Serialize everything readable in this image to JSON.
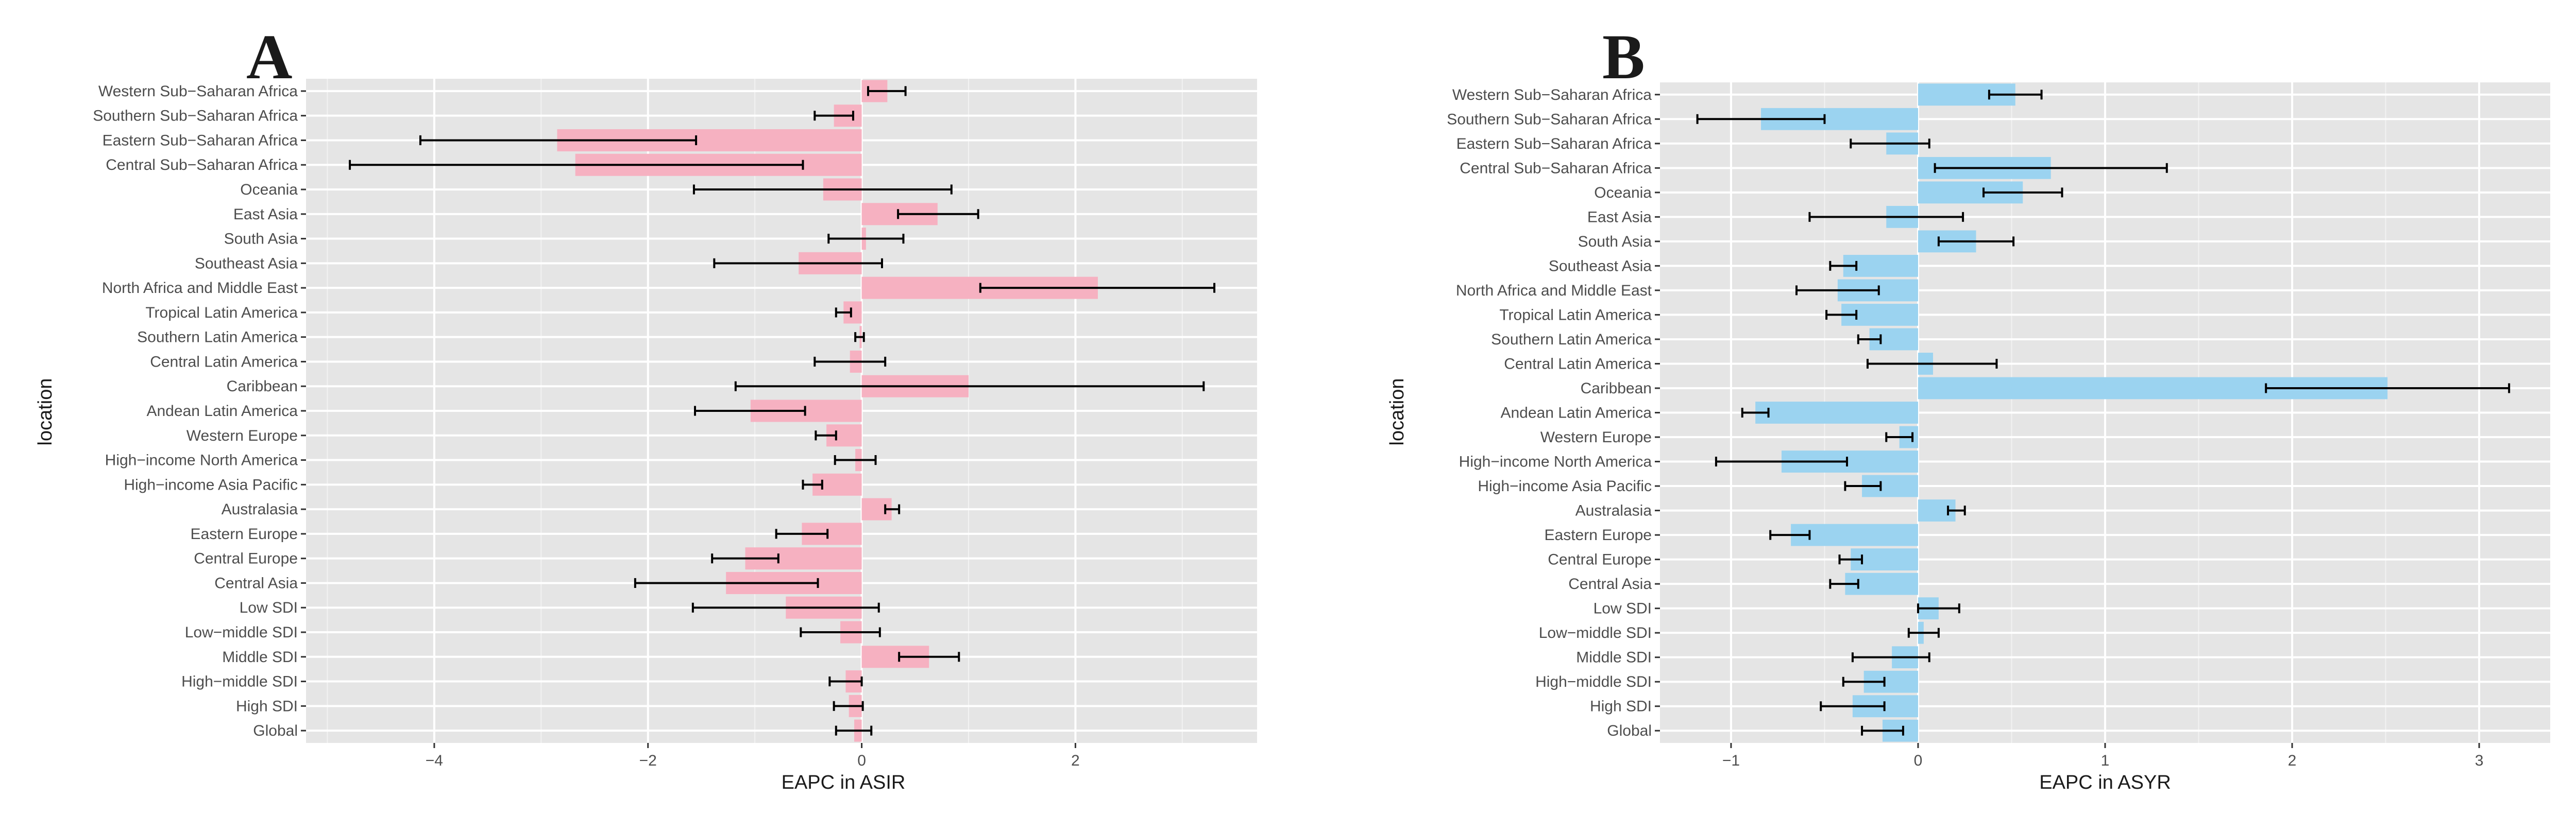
{
  "chart_data": [
    {
      "panel_label": "A",
      "type": "bar",
      "orientation": "horizontal",
      "xlabel": "EAPC in ASIR",
      "ylabel": "location",
      "bar_color": "#f6b1c1",
      "xlim": [
        -5.2,
        3.7
      ],
      "xticks": [
        -4,
        -2,
        0,
        2
      ],
      "categories": [
        "Western Sub-Saharan Africa",
        "Southern Sub-Saharan Africa",
        "Eastern Sub-Saharan Africa",
        "Central Sub-Saharan Africa",
        "Oceania",
        "East Asia",
        "South Asia",
        "Southeast Asia",
        "North Africa and Middle East",
        "Tropical Latin America",
        "Southern Latin America",
        "Central Latin America",
        "Caribbean",
        "Andean Latin America",
        "Western Europe",
        "High-income North America",
        "High-income Asia Pacific",
        "Australasia",
        "Eastern Europe",
        "Central Europe",
        "Central Asia",
        "Low SDI",
        "Low-middle SDI",
        "Middle SDI",
        "High-middle SDI",
        "High SDI",
        "Global"
      ],
      "tick_labels": [
        "Western Sub−Saharan Africa",
        "Southern Sub−Saharan Africa",
        "Eastern Sub−Saharan Africa",
        "Central Sub−Saharan Africa",
        "Oceania",
        "East Asia",
        "South Asia",
        "Southeast Asia",
        "North Africa and Middle East",
        "Tropical Latin America",
        "Southern Latin America",
        "Central Latin America",
        "Caribbean",
        "Andean Latin America",
        "Western Europe",
        "High−income North America",
        "High−income Asia Pacific",
        "Australasia",
        "Eastern Europe",
        "Central Europe",
        "Central Asia",
        "Low SDI",
        "Low−middle SDI",
        "Middle SDI",
        "High−middle SDI",
        "High SDI",
        "Global"
      ],
      "values": [
        0.24,
        -0.26,
        -2.85,
        -2.68,
        -0.36,
        0.71,
        0.04,
        -0.59,
        2.21,
        -0.17,
        -0.02,
        -0.11,
        1.0,
        -1.04,
        -0.33,
        -0.06,
        -0.46,
        0.28,
        -0.56,
        -1.09,
        -1.27,
        -0.71,
        -0.2,
        0.63,
        -0.15,
        -0.12,
        -0.07
      ],
      "ci_lower": [
        0.06,
        -0.44,
        -4.13,
        -4.79,
        -1.57,
        0.34,
        -0.31,
        -1.38,
        1.11,
        -0.24,
        -0.06,
        -0.44,
        -1.18,
        -1.56,
        -0.43,
        -0.25,
        -0.55,
        0.22,
        -0.8,
        -1.4,
        -2.12,
        -1.58,
        -0.57,
        0.35,
        -0.3,
        -0.26,
        -0.24
      ],
      "ci_upper": [
        0.41,
        -0.08,
        -1.55,
        -0.55,
        0.84,
        1.09,
        0.39,
        0.19,
        3.3,
        -0.1,
        0.02,
        0.22,
        3.2,
        -0.53,
        -0.24,
        0.13,
        -0.37,
        0.35,
        -0.32,
        -0.78,
        -0.41,
        0.16,
        0.17,
        0.91,
        0.0,
        0.01,
        0.09
      ]
    },
    {
      "panel_label": "B",
      "type": "bar",
      "orientation": "horizontal",
      "xlabel": "EAPC in ASYR",
      "ylabel": "location",
      "bar_color": "#9bd3f0",
      "xlim": [
        -1.38,
        3.38
      ],
      "xticks": [
        -1,
        0,
        1,
        2,
        3
      ],
      "categories": [
        "Western Sub-Saharan Africa",
        "Southern Sub-Saharan Africa",
        "Eastern Sub-Saharan Africa",
        "Central Sub-Saharan Africa",
        "Oceania",
        "East Asia",
        "South Asia",
        "Southeast Asia",
        "North Africa and Middle East",
        "Tropical Latin America",
        "Southern Latin America",
        "Central Latin America",
        "Caribbean",
        "Andean Latin America",
        "Western Europe",
        "High-income North America",
        "High-income Asia Pacific",
        "Australasia",
        "Eastern Europe",
        "Central Europe",
        "Central Asia",
        "Low SDI",
        "Low-middle SDI",
        "Middle SDI",
        "High-middle SDI",
        "High SDI",
        "Global"
      ],
      "tick_labels": [
        "Western Sub−Saharan Africa",
        "Southern Sub−Saharan Africa",
        "Eastern Sub−Saharan Africa",
        "Central Sub−Saharan Africa",
        "Oceania",
        "East Asia",
        "South Asia",
        "Southeast Asia",
        "North Africa and Middle East",
        "Tropical Latin America",
        "Southern Latin America",
        "Central Latin America",
        "Caribbean",
        "Andean Latin America",
        "Western Europe",
        "High−income North America",
        "High−income Asia Pacific",
        "Australasia",
        "Eastern Europe",
        "Central Europe",
        "Central Asia",
        "Low SDI",
        "Low−middle SDI",
        "Middle SDI",
        "High−middle SDI",
        "High SDI",
        "Global"
      ],
      "values": [
        0.52,
        -0.84,
        -0.17,
        0.71,
        0.56,
        -0.17,
        0.31,
        -0.4,
        -0.43,
        -0.41,
        -0.26,
        0.08,
        2.51,
        -0.87,
        -0.1,
        -0.73,
        -0.3,
        0.2,
        -0.68,
        -0.36,
        -0.39,
        0.11,
        0.03,
        -0.14,
        -0.29,
        -0.35,
        -0.19
      ],
      "ci_lower": [
        0.38,
        -1.18,
        -0.36,
        0.09,
        0.35,
        -0.58,
        0.11,
        -0.47,
        -0.65,
        -0.49,
        -0.32,
        -0.27,
        1.86,
        -0.94,
        -0.17,
        -1.08,
        -0.39,
        0.16,
        -0.79,
        -0.42,
        -0.47,
        0.0,
        -0.05,
        -0.35,
        -0.4,
        -0.52,
        -0.3
      ],
      "ci_upper": [
        0.66,
        -0.5,
        0.06,
        1.33,
        0.77,
        0.24,
        0.51,
        -0.33,
        -0.21,
        -0.33,
        -0.2,
        0.42,
        3.16,
        -0.8,
        -0.03,
        -0.38,
        -0.2,
        0.25,
        -0.58,
        -0.3,
        -0.32,
        0.22,
        0.11,
        0.06,
        -0.18,
        -0.18,
        -0.08
      ]
    }
  ]
}
